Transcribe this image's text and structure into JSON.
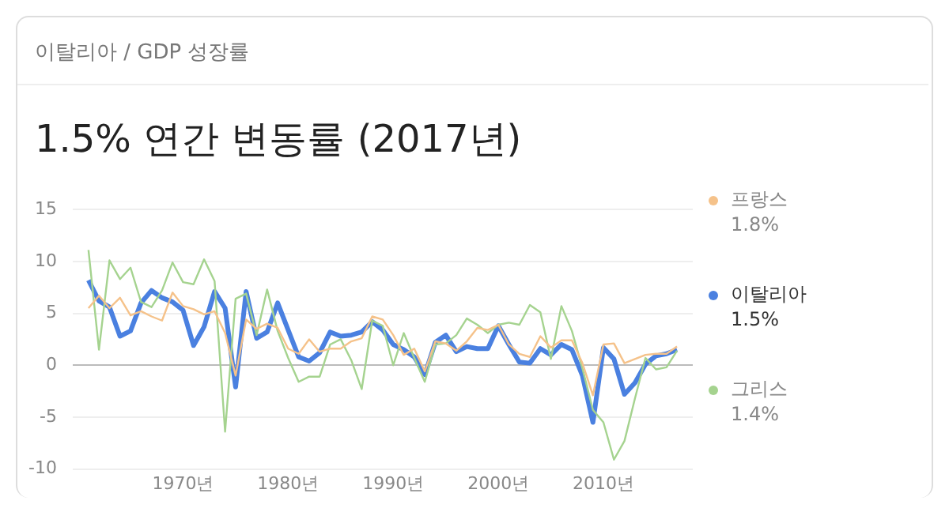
{
  "chart_data": {
    "type": "line",
    "subtitle": "이탈리아 / GDP 성장률",
    "title": "1.5% 연간 변동률 (2017년)",
    "x": [
      1961,
      1962,
      1963,
      1964,
      1965,
      1966,
      1967,
      1968,
      1969,
      1970,
      1971,
      1972,
      1973,
      1974,
      1975,
      1976,
      1977,
      1978,
      1979,
      1980,
      1981,
      1982,
      1983,
      1984,
      1985,
      1986,
      1987,
      1988,
      1989,
      1990,
      1991,
      1992,
      1993,
      1994,
      1995,
      1996,
      1997,
      1998,
      1999,
      2000,
      2001,
      2002,
      2003,
      2004,
      2005,
      2006,
      2007,
      2008,
      2009,
      2010,
      2011,
      2012,
      2013,
      2014,
      2015,
      2016,
      2017
    ],
    "series": [
      {
        "name": "프랑스",
        "color": "#f5c28a",
        "values": [
          5.5,
          6.7,
          5.5,
          6.5,
          4.8,
          5.2,
          4.7,
          4.3,
          7.0,
          5.7,
          5.4,
          4.9,
          5.2,
          3.1,
          -1.0,
          4.4,
          3.5,
          4.0,
          3.6,
          1.6,
          1.1,
          2.5,
          1.3,
          1.6,
          1.6,
          2.3,
          2.6,
          4.7,
          4.4,
          2.9,
          1.0,
          1.6,
          -0.6,
          2.3,
          2.1,
          1.4,
          2.3,
          3.6,
          3.4,
          3.9,
          2.0,
          1.1,
          0.8,
          2.8,
          1.7,
          2.4,
          2.4,
          0.2,
          -2.9,
          2.0,
          2.1,
          0.2,
          0.6,
          1.0,
          1.1,
          1.1,
          1.8
        ]
      },
      {
        "name": "그리스",
        "color": "#a5d38f",
        "values": [
          11.1,
          1.5,
          10.1,
          8.3,
          9.4,
          6.1,
          5.6,
          7.2,
          9.9,
          8.0,
          7.8,
          10.2,
          8.1,
          -6.4,
          6.4,
          6.9,
          2.9,
          7.3,
          3.3,
          0.7,
          -1.6,
          -1.1,
          -1.1,
          2.0,
          2.5,
          0.5,
          -2.3,
          4.3,
          3.8,
          0.0,
          3.1,
          0.7,
          -1.6,
          2.0,
          2.1,
          2.9,
          4.5,
          3.9,
          3.1,
          3.9,
          4.1,
          3.9,
          5.8,
          5.1,
          0.6,
          5.7,
          3.3,
          -0.3,
          -4.3,
          -5.5,
          -9.1,
          -7.3,
          -3.2,
          0.7,
          -0.4,
          -0.2,
          1.4
        ]
      },
      {
        "name": "이탈리아",
        "color": "#4a80e0",
        "values": [
          8.2,
          6.2,
          5.6,
          2.8,
          3.3,
          6.0,
          7.2,
          6.5,
          6.1,
          5.3,
          1.9,
          3.7,
          7.1,
          5.5,
          -2.1,
          7.1,
          2.6,
          3.2,
          6.0,
          3.4,
          0.8,
          0.4,
          1.2,
          3.2,
          2.8,
          2.9,
          3.2,
          4.2,
          3.4,
          2.0,
          1.5,
          0.8,
          -0.9,
          2.2,
          2.9,
          1.3,
          1.8,
          1.6,
          1.6,
          3.8,
          2.0,
          0.3,
          0.2,
          1.6,
          1.0,
          2.0,
          1.5,
          -1.0,
          -5.5,
          1.7,
          0.6,
          -2.8,
          -1.7,
          0.1,
          0.9,
          1.1,
          1.5
        ]
      }
    ],
    "annotations": [
      "1.8%",
      "1.4%",
      "1.5%"
    ],
    "xlim": [
      1959.5,
      2018.5
    ],
    "xticks": [
      {
        "value": 1970,
        "label": "1970년"
      },
      {
        "value": 1980,
        "label": "1980년"
      },
      {
        "value": 1990,
        "label": "1990년"
      },
      {
        "value": 2000,
        "label": "2000년"
      },
      {
        "value": 2010,
        "label": "2010년"
      }
    ],
    "ylim": [
      -10,
      15
    ],
    "yticks": [
      -10,
      -5,
      0,
      5,
      10,
      15
    ],
    "grid": "y",
    "legend": "right",
    "marker": "none",
    "line_style": "solid"
  }
}
